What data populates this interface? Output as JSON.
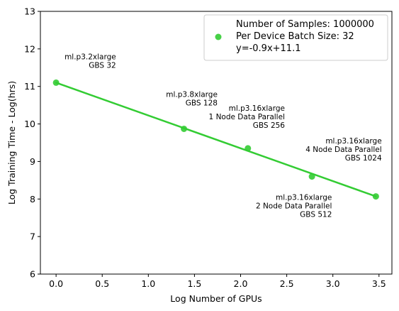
{
  "chart_data": {
    "type": "scatter",
    "xlabel": "Log Number of GPUs",
    "ylabel": "Log Training Time - Log(hrs)",
    "xlim": [
      -0.17,
      3.64
    ],
    "ylim": [
      6,
      13
    ],
    "xticks": [
      0.0,
      0.5,
      1.0,
      1.5,
      2.0,
      2.5,
      3.0,
      3.5
    ],
    "xtick_labels": [
      "0.0",
      "0.5",
      "1.0",
      "1.5",
      "2.0",
      "2.5",
      "3.0",
      "3.5"
    ],
    "yticks": [
      6,
      7,
      8,
      9,
      10,
      11,
      12,
      13
    ],
    "ytick_labels": [
      "6",
      "7",
      "8",
      "9",
      "10",
      "11",
      "12",
      "13"
    ],
    "grid": false,
    "legend_position": "top-right",
    "color": "#33cc33",
    "points": [
      {
        "x": 0.0,
        "y": 11.1
      },
      {
        "x": 1.386,
        "y": 9.87
      },
      {
        "x": 2.079,
        "y": 9.35
      },
      {
        "x": 2.773,
        "y": 8.6
      },
      {
        "x": 3.466,
        "y": 8.07
      }
    ],
    "fit_line": {
      "x": [
        0.0,
        3.466
      ],
      "y": [
        11.1,
        8.07
      ]
    },
    "legend_lines": [
      "Number of Samples: 1000000",
      "Per Device Batch Size: 32",
      "y=-0.9x+11.1"
    ],
    "annotations": [
      {
        "lines": [
          "ml.p3.2xlarge",
          "GBS 32"
        ],
        "x": 0.65,
        "y": 11.72
      },
      {
        "lines": [
          "ml.p3.8xlarge",
          "GBS 128"
        ],
        "x": 1.75,
        "y": 10.72
      },
      {
        "lines": [
          "ml.p3.16xlarge",
          "1 Node Data Parallel",
          "GBS 256"
        ],
        "x": 2.48,
        "y": 10.35
      },
      {
        "lines": [
          "ml.p3.16xlarge",
          "2 Node Data Parallel",
          "GBS 512"
        ],
        "x": 2.99,
        "y": 7.98
      },
      {
        "lines": [
          "ml.p3.16xlarge",
          "4 Node Data Parallel",
          "GBS 1024"
        ],
        "x": 3.53,
        "y": 9.48
      }
    ]
  }
}
